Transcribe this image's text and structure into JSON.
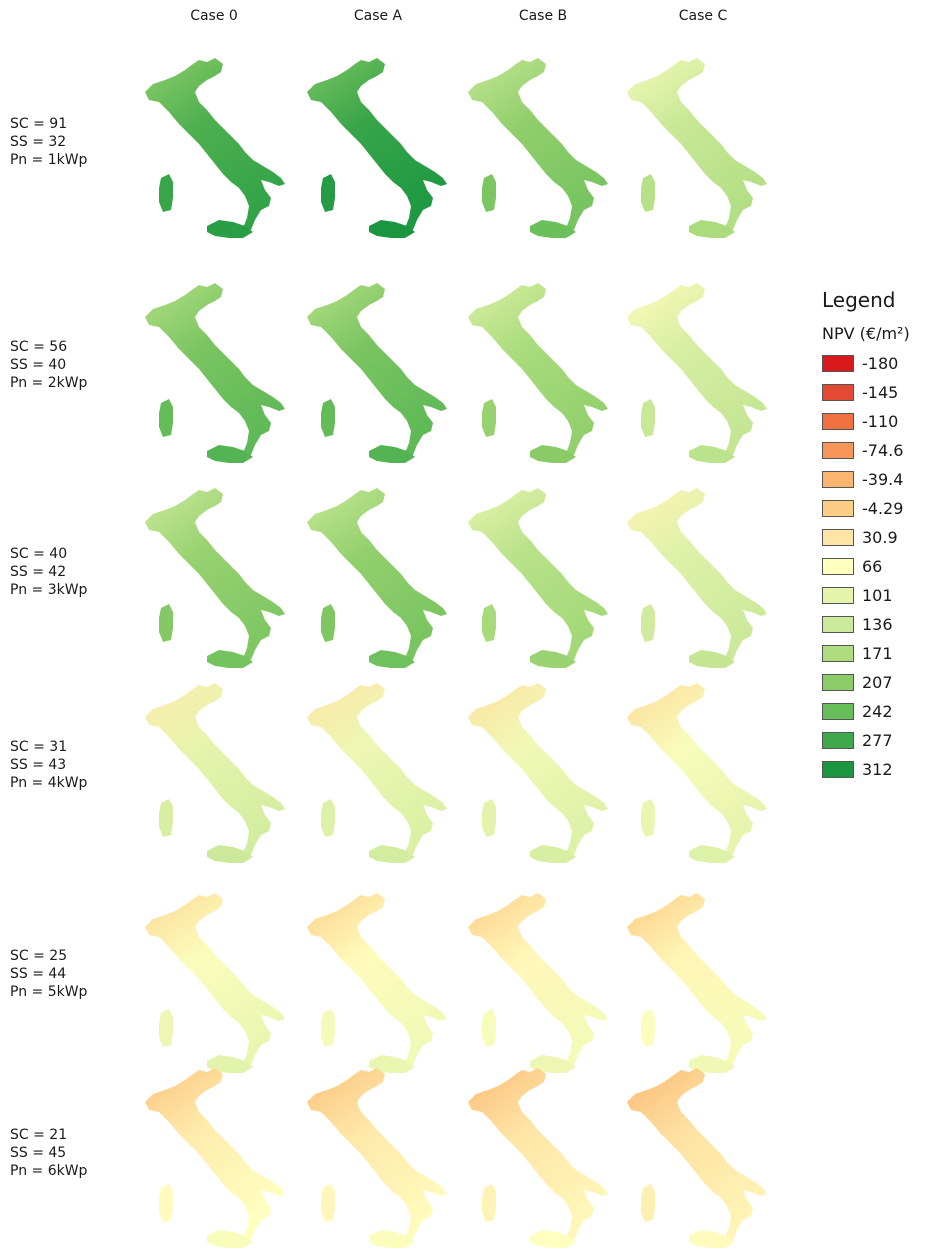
{
  "columns": [
    "Case 0",
    "Case A",
    "Case B",
    "Case C"
  ],
  "rows": [
    {
      "sc": "SC = 91",
      "ss": "SS = 32",
      "pn": "Pn = 1kWp",
      "levels": [
        0.8,
        0.88,
        0.55,
        0.3
      ]
    },
    {
      "sc": "SC = 56",
      "ss": "SS = 40",
      "pn": "Pn = 2kWp",
      "levels": [
        0.64,
        0.64,
        0.44,
        0.22
      ]
    },
    {
      "sc": "SC = 40",
      "ss": "SS = 42",
      "pn": "Pn = 3kWp",
      "levels": [
        0.52,
        0.54,
        0.37,
        0.18
      ]
    },
    {
      "sc": "SC = 31",
      "ss": "SS = 43",
      "pn": "Pn = 4kWp",
      "levels": [
        0.14,
        0.1,
        0.08,
        0.04
      ]
    },
    {
      "sc": "SC = 25",
      "ss": "SS = 44",
      "pn": "Pn = 5kWp",
      "levels": [
        0.02,
        -0.02,
        -0.04,
        -0.05
      ]
    },
    {
      "sc": "SC = 21",
      "ss": "SS = 45",
      "pn": "Pn = 6kWp",
      "levels": [
        -0.1,
        -0.12,
        -0.14,
        -0.16
      ]
    }
  ],
  "legend": {
    "title": "Legend",
    "unit": "NPV (€/m²)",
    "items": [
      {
        "value": "-180",
        "color": "#d7191c"
      },
      {
        "value": "-145",
        "color": "#e34a33"
      },
      {
        "value": "-110",
        "color": "#ef7040"
      },
      {
        "value": "-74.6",
        "color": "#f7955a"
      },
      {
        "value": "-39.4",
        "color": "#fbb56e"
      },
      {
        "value": "-4.29",
        "color": "#fdcd86"
      },
      {
        "value": "30.9",
        "color": "#fee4a6"
      },
      {
        "value": "66",
        "color": "#ffffc0"
      },
      {
        "value": "101",
        "color": "#e5f4ad"
      },
      {
        "value": "136",
        "color": "#cbe99a"
      },
      {
        "value": "171",
        "color": "#addd7e"
      },
      {
        "value": "207",
        "color": "#8ccc68"
      },
      {
        "value": "242",
        "color": "#66bd5a"
      },
      {
        "value": "277",
        "color": "#3ea84a"
      },
      {
        "value": "312",
        "color": "#1a9641"
      }
    ]
  }
}
